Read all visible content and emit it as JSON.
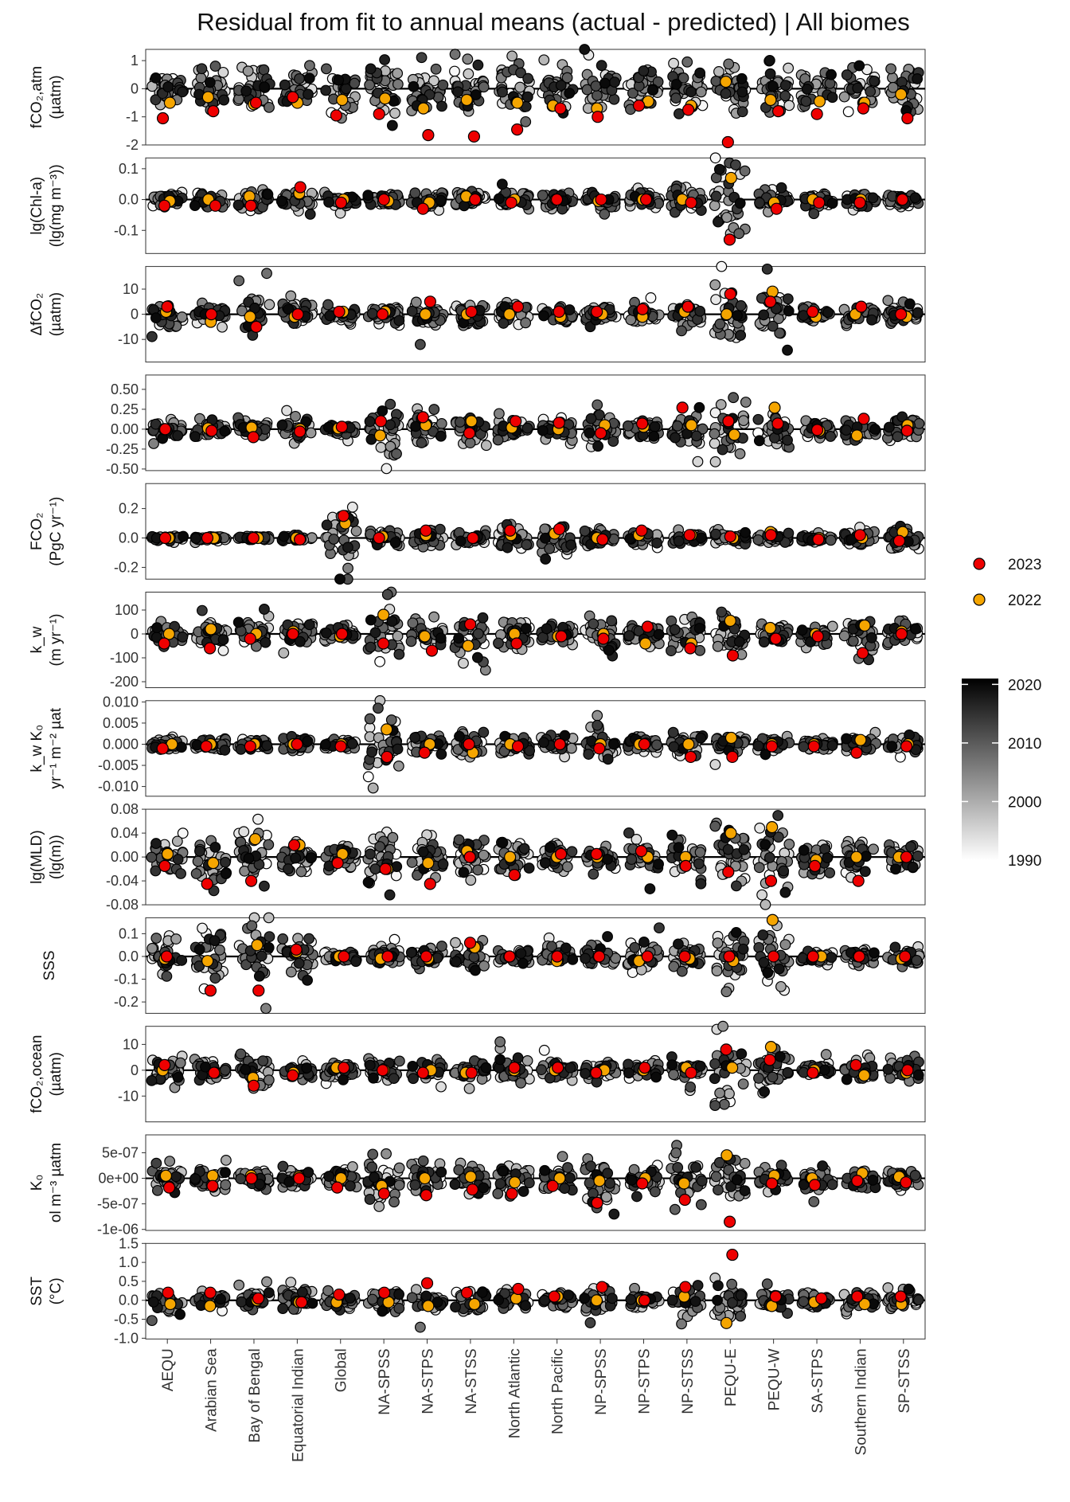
{
  "title": "Residual from fit to annual means (actual - predicted) | All biomes",
  "legend": {
    "highlight": [
      {
        "label": "2023",
        "color": "#ee0000"
      },
      {
        "label": "2022",
        "color": "#f5a500"
      }
    ],
    "gradient": {
      "ticks": [
        "2020",
        "2010",
        "2000",
        "1990"
      ],
      "min": 1990,
      "max": 2021
    }
  },
  "chart_data": {
    "type": "scatter",
    "description_of_points": "jittered per-year residual points, grayscale by year 1990-2021; highlighted 2022 (orange) and 2023 (red)",
    "categories": [
      "AEQU",
      "Arabian Sea",
      "Bay of Bengal",
      "Equatorial Indian",
      "Global",
      "NA-SPSS",
      "NA-STPS",
      "NA-STSS",
      "North Atlantic",
      "North Pacific",
      "NP-SPSS",
      "NP-STPS",
      "NP-STSS",
      "PEQU-E",
      "PEQU-W",
      "SA-STPS",
      "Southern Indian",
      "SP-STSS"
    ],
    "panels": [
      {
        "ylabel": [
          "fCO₂,atm",
          "(µatm)"
        ],
        "ylim": [
          -2,
          1.4
        ],
        "ticks": [
          "1",
          "0",
          "-1",
          "-2"
        ],
        "tickvals": [
          1,
          0,
          -1,
          -2
        ],
        "spread": [
          0.35,
          0.35,
          0.35,
          0.35,
          0.4,
          0.45,
          0.45,
          0.5,
          0.45,
          0.4,
          0.45,
          0.4,
          0.45,
          0.5,
          0.4,
          0.35,
          0.35,
          0.35
        ],
        "y2023": [
          -1.05,
          -0.8,
          -0.5,
          -0.3,
          -0.95,
          -0.9,
          -1.65,
          -1.7,
          -1.45,
          -0.7,
          -1.0,
          -0.6,
          -0.75,
          -1.9,
          -0.8,
          -0.9,
          -0.7,
          -1.05
        ],
        "y2022": [
          -0.5,
          -0.3,
          -0.55,
          -0.5,
          -0.4,
          -0.35,
          -0.7,
          -0.4,
          -0.5,
          -0.6,
          -0.7,
          -0.45,
          -0.6,
          0.25,
          -0.4,
          -0.45,
          -0.5,
          -0.2
        ]
      },
      {
        "ylabel": [
          "lg(Chl-a)",
          "(lg(mg m⁻³))"
        ],
        "ylim": [
          -0.175,
          0.135
        ],
        "ticks": [
          "0.1",
          "0.0",
          "-0.1"
        ],
        "tickvals": [
          0.1,
          0,
          -0.1
        ],
        "spread": [
          0.012,
          0.012,
          0.015,
          0.015,
          0.01,
          0.012,
          0.012,
          0.012,
          0.012,
          0.012,
          0.012,
          0.012,
          0.015,
          0.07,
          0.018,
          0.01,
          0.012,
          0.01
        ],
        "y2023": [
          -0.02,
          -0.02,
          -0.02,
          0.04,
          -0.01,
          0.0,
          -0.03,
          0.0,
          -0.01,
          0.0,
          0.0,
          0.0,
          -0.01,
          -0.13,
          -0.03,
          -0.01,
          -0.01,
          0.0
        ],
        "y2022": [
          -0.005,
          0.0,
          0.01,
          0.02,
          0.0,
          -0.005,
          -0.01,
          0.01,
          0.0,
          0.0,
          -0.005,
          0.0,
          0.0,
          0.07,
          -0.01,
          0.0,
          0.0,
          0.0
        ]
      },
      {
        "ylabel": [
          "ΔfCO₂",
          "(µatm)"
        ],
        "ylim": [
          -19,
          19
        ],
        "ticks": [
          "10",
          "0",
          "-10"
        ],
        "tickvals": [
          10,
          0,
          -10
        ],
        "spread": [
          2.5,
          2.2,
          4,
          2,
          1.5,
          2,
          2.2,
          2,
          2,
          1.5,
          1.5,
          1.5,
          1.8,
          7,
          5,
          1.5,
          1.5,
          2
        ],
        "y2023": [
          3,
          0,
          -5,
          0,
          1,
          0,
          5,
          1,
          3,
          1,
          1,
          2,
          3,
          8,
          5,
          1,
          3,
          0
        ],
        "y2022": [
          1,
          -3,
          -1,
          -1,
          1,
          1,
          0,
          0,
          0,
          -1,
          0,
          -1,
          1,
          0,
          9,
          -1,
          0,
          -1
        ]
      },
      {
        "ylabel": [
          "",
          ""
        ],
        "ylim": [
          -0.52,
          0.68
        ],
        "ticks": [
          "0.50",
          "0.25",
          "0.00",
          "-0.25",
          "-0.50"
        ],
        "tickvals": [
          0.5,
          0.25,
          0,
          -0.25,
          -0.5
        ],
        "spread": [
          0.05,
          0.05,
          0.07,
          0.05,
          0.04,
          0.2,
          0.08,
          0.12,
          0.07,
          0.06,
          0.1,
          0.07,
          0.1,
          0.18,
          0.1,
          0.05,
          0.06,
          0.06
        ],
        "y2023": [
          0.0,
          -0.02,
          -0.1,
          -0.03,
          0.03,
          0.1,
          0.15,
          -0.05,
          0.1,
          0.08,
          -0.05,
          0.07,
          0.27,
          0.1,
          0.07,
          -0.01,
          0.13,
          -0.02
        ],
        "y2022": [
          0.0,
          0.01,
          0.02,
          0.0,
          0.01,
          -0.08,
          0.05,
          0.1,
          0.02,
          0.0,
          0.05,
          0.03,
          0.05,
          -0.07,
          0.27,
          -0.02,
          -0.08,
          0.05
        ]
      },
      {
        "ylabel": [
          "FCO₂",
          "(PgC yr⁻¹)"
        ],
        "ylim": [
          -0.28,
          0.37
        ],
        "ticks": [
          "0.2",
          "0.0",
          "-0.2"
        ],
        "tickvals": [
          0.2,
          0,
          -0.2
        ],
        "spread": [
          0.008,
          0.008,
          0.008,
          0.01,
          0.12,
          0.03,
          0.03,
          0.02,
          0.04,
          0.06,
          0.03,
          0.03,
          0.02,
          0.03,
          0.02,
          0.01,
          0.02,
          0.04
        ],
        "y2023": [
          0.0,
          0.0,
          0.0,
          -0.01,
          0.15,
          0.0,
          0.05,
          0.0,
          0.05,
          0.06,
          -0.01,
          0.05,
          0.02,
          0.01,
          0.02,
          -0.01,
          0.02,
          -0.02
        ],
        "y2022": [
          0.0,
          0.0,
          0.0,
          0.0,
          0.1,
          0.01,
          0.02,
          0.0,
          0.02,
          0.03,
          0.0,
          0.02,
          0.02,
          0.0,
          0.04,
          0.0,
          0.0,
          0.04
        ]
      },
      {
        "ylabel": [
          "k_w",
          "(m yr⁻¹)"
        ],
        "ylim": [
          -225,
          175
        ],
        "ticks": [
          "100",
          "0",
          "-100",
          "-200"
        ],
        "tickvals": [
          100,
          0,
          -100,
          -200
        ],
        "spread": [
          22,
          28,
          30,
          25,
          12,
          70,
          25,
          45,
          30,
          22,
          35,
          22,
          35,
          45,
          25,
          20,
          28,
          25
        ],
        "y2023": [
          -40,
          -60,
          -20,
          0,
          0,
          -40,
          -70,
          40,
          -40,
          -10,
          -20,
          30,
          -60,
          -90,
          -20,
          -10,
          -80,
          0
        ],
        "y2022": [
          0,
          20,
          0,
          10,
          -10,
          80,
          -10,
          -50,
          0,
          -10,
          0,
          -40,
          -40,
          55,
          25,
          0,
          35,
          10
        ]
      },
      {
        "ylabel": [
          "k_w K₀",
          "yr⁻¹ m⁻² µat"
        ],
        "ylim": [
          -0.0123,
          0.0103
        ],
        "ticks": [
          "0.010",
          "0.005",
          "0.000",
          "-0.005",
          "-0.010"
        ],
        "tickvals": [
          0.01,
          0.005,
          0,
          -0.005,
          -0.01
        ],
        "spread": [
          0.0007,
          0.0007,
          0.0008,
          0.0007,
          0.0005,
          0.004,
          0.001,
          0.002,
          0.001,
          0.0008,
          0.0018,
          0.0008,
          0.0012,
          0.0012,
          0.0006,
          0.0006,
          0.0008,
          0.0008
        ],
        "y2023": [
          -0.001,
          -0.0005,
          -0.0005,
          0.0,
          -0.0005,
          -0.003,
          -0.002,
          0.0,
          -0.0005,
          0.0,
          -0.001,
          0.0,
          -0.003,
          -0.003,
          -0.0005,
          -0.0005,
          -0.002,
          -0.0005
        ],
        "y2022": [
          0.0,
          0.0,
          0.0,
          0.0,
          0.0,
          0.0035,
          0.0,
          -0.002,
          0.0,
          0.0,
          0.0,
          0.0,
          0.0,
          0.0015,
          0.0,
          0.0,
          0.001,
          0.0
        ]
      },
      {
        "ylabel": [
          "lg(MLD)",
          "(lg(m))"
        ],
        "ylim": [
          -0.08,
          0.08
        ],
        "ticks": [
          "0.08",
          "0.04",
          "0.00",
          "-0.04",
          "-0.08"
        ],
        "tickvals": [
          0.08,
          0.04,
          0.0,
          -0.04,
          -0.08
        ],
        "spread": [
          0.015,
          0.02,
          0.025,
          0.015,
          0.01,
          0.025,
          0.015,
          0.018,
          0.012,
          0.012,
          0.012,
          0.012,
          0.015,
          0.025,
          0.035,
          0.012,
          0.012,
          0.012
        ],
        "y2023": [
          -0.015,
          -0.045,
          -0.04,
          0.02,
          -0.01,
          -0.02,
          -0.045,
          0.0,
          -0.03,
          0.005,
          0.005,
          0.01,
          -0.015,
          -0.025,
          -0.04,
          -0.015,
          -0.04,
          0.0
        ],
        "y2022": [
          0.005,
          -0.01,
          0.03,
          0.02,
          0.005,
          -0.02,
          -0.01,
          0.01,
          0.0,
          0.0,
          0.0,
          0.0,
          0.0,
          0.04,
          0.05,
          -0.005,
          0.0,
          0.0
        ]
      },
      {
        "ylabel": [
          "SSS",
          ""
        ],
        "ylim": [
          -0.25,
          0.17
        ],
        "ticks": [
          "0.1",
          "0.0",
          "-0.1",
          "-0.2"
        ],
        "tickvals": [
          0.1,
          0,
          -0.1,
          -0.2
        ],
        "spread": [
          0.04,
          0.06,
          0.07,
          0.04,
          0.01,
          0.02,
          0.02,
          0.03,
          0.015,
          0.02,
          0.02,
          0.03,
          0.02,
          0.08,
          0.07,
          0.015,
          0.015,
          0.02
        ],
        "y2023": [
          0.0,
          -0.15,
          -0.15,
          0.03,
          0.0,
          0.0,
          0.0,
          0.06,
          0.0,
          0.0,
          0.0,
          0.0,
          0.0,
          0.0,
          0.0,
          0.0,
          0.0,
          0.0
        ],
        "y2022": [
          -0.01,
          -0.02,
          0.05,
          0.02,
          0.0,
          -0.01,
          -0.01,
          0.04,
          0.0,
          -0.02,
          0.0,
          -0.02,
          -0.01,
          -0.02,
          0.16,
          0.0,
          0.0,
          -0.01
        ]
      },
      {
        "ylabel": [
          "fCO₂,ocean",
          "(µatm)"
        ],
        "ylim": [
          -20,
          17
        ],
        "ticks": [
          "10",
          "0",
          "-10"
        ],
        "tickvals": [
          10,
          0,
          -10
        ],
        "spread": [
          2.5,
          2,
          4,
          1.8,
          1.5,
          2,
          2,
          2,
          2,
          1.5,
          1.5,
          1.5,
          1.8,
          7,
          4.5,
          1.5,
          1.5,
          2
        ],
        "y2023": [
          2,
          -1,
          -6,
          -2,
          1,
          0,
          -1,
          -1,
          1,
          1,
          -1,
          1,
          -1,
          8,
          4,
          -1,
          2,
          0
        ],
        "y2022": [
          0,
          -1,
          -3,
          -1,
          1,
          0,
          0,
          -1,
          0,
          0,
          0,
          0,
          1,
          1,
          9,
          0,
          -2,
          -1
        ]
      },
      {
        "ylabel": [
          "K₀",
          "ol m⁻³ µatm"
        ],
        "ylim": [
          -1.02e-06,
          8.5e-07
        ],
        "ticks": [
          "5e-07",
          "0e+00",
          "-5e-07",
          "-1e-06"
        ],
        "tickvals": [
          5e-07,
          0,
          -5e-07,
          -1e-06
        ],
        "spread": [
          1.1e-07,
          1e-07,
          1e-07,
          1e-07,
          1e-07,
          3e-07,
          1.5e-07,
          1.6e-07,
          1.4e-07,
          1.2e-07,
          3.2e-07,
          1.2e-07,
          2.2e-07,
          2.2e-07,
          1.2e-07,
          1e-07,
          1e-07,
          1e-07
        ],
        "y2023": [
          -1.8e-07,
          -1.5e-07,
          0.0,
          0.0,
          -1.8e-07,
          -3e-07,
          -3.3e-07,
          -2.2e-07,
          -3e-07,
          -1.5e-07,
          -4.8e-07,
          -1e-07,
          -4.2e-07,
          -8.5e-07,
          -1e-07,
          -1.3e-07,
          -5e-08,
          -8e-08
        ],
        "y2022": [
          5e-08,
          5e-08,
          5e-08,
          3e-08,
          0.0,
          -1.5e-07,
          0.0,
          3e-08,
          -8e-08,
          0.0,
          -5e-08,
          0.0,
          -1e-07,
          4.5e-07,
          5e-08,
          0.0,
          1e-07,
          3e-08
        ]
      },
      {
        "ylabel": [
          "SST",
          "(°C)"
        ],
        "ylim": [
          -1.02,
          1.5
        ],
        "ticks": [
          "1.5",
          "1.0",
          "0.5",
          "0.0",
          "-0.5",
          "-1.0"
        ],
        "tickvals": [
          1.5,
          1.0,
          0.5,
          0.0,
          -0.5,
          -1.0
        ],
        "spread": [
          0.15,
          0.12,
          0.12,
          0.13,
          0.1,
          0.17,
          0.13,
          0.13,
          0.12,
          0.1,
          0.18,
          0.1,
          0.17,
          0.35,
          0.12,
          0.1,
          0.12,
          0.12
        ],
        "y2023": [
          0.2,
          0.2,
          0.05,
          -0.05,
          0.15,
          0.2,
          0.45,
          0.2,
          0.3,
          0.1,
          0.35,
          0.0,
          0.35,
          1.2,
          0.1,
          0.05,
          0.1,
          0.1
        ],
        "y2022": [
          -0.1,
          -0.15,
          0.0,
          -0.05,
          -0.05,
          -0.05,
          -0.15,
          -0.1,
          0.05,
          0.1,
          0.0,
          0.0,
          0.1,
          -0.6,
          -0.15,
          -0.05,
          -0.1,
          -0.1
        ]
      }
    ]
  }
}
